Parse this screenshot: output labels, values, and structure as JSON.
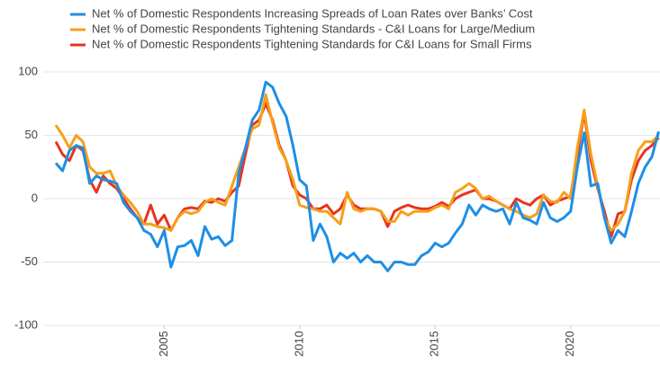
{
  "chart_data": {
    "type": "line",
    "x": [
      2001,
      2001.25,
      2001.5,
      2001.75,
      2002,
      2002.25,
      2002.5,
      2002.75,
      2003,
      2003.25,
      2003.5,
      2003.75,
      2004,
      2004.25,
      2004.5,
      2004.75,
      2005,
      2005.25,
      2005.5,
      2005.75,
      2006,
      2006.25,
      2006.5,
      2006.75,
      2007,
      2007.25,
      2007.5,
      2007.75,
      2008,
      2008.25,
      2008.5,
      2008.75,
      2009,
      2009.25,
      2009.5,
      2009.75,
      2010,
      2010.25,
      2010.5,
      2010.75,
      2011,
      2011.25,
      2011.5,
      2011.75,
      2012,
      2012.25,
      2012.5,
      2012.75,
      2013,
      2013.25,
      2013.5,
      2013.75,
      2014,
      2014.25,
      2014.5,
      2014.75,
      2015,
      2015.25,
      2015.5,
      2015.75,
      2016,
      2016.25,
      2016.5,
      2016.75,
      2017,
      2017.25,
      2017.5,
      2017.75,
      2018,
      2018.25,
      2018.5,
      2018.75,
      2019,
      2019.25,
      2019.5,
      2019.75,
      2020,
      2020.25,
      2020.5,
      2020.75,
      2021,
      2021.25,
      2021.5,
      2021.75,
      2022,
      2022.25,
      2022.5,
      2022.75,
      2023,
      2023.25
    ],
    "series": [
      {
        "name": "Net % of Domestic Respondents Increasing Spreads of Loan Rates over Banks’ Cost",
        "color": "#1e8fe6",
        "values": [
          28,
          22,
          38,
          42,
          40,
          12,
          18,
          15,
          14,
          12,
          -3,
          -10,
          -15,
          -25,
          -28,
          -38,
          -25,
          -54,
          -38,
          -37,
          -33,
          -45,
          -22,
          -32,
          -30,
          -37,
          -33,
          20,
          40,
          62,
          70,
          92,
          88,
          75,
          65,
          42,
          15,
          10,
          -33,
          -20,
          -30,
          -50,
          -43,
          -47,
          -43,
          -50,
          -45,
          -50,
          -50,
          -57,
          -50,
          -50,
          -52,
          -52,
          -45,
          -42,
          -35,
          -38,
          -35,
          -27,
          -20,
          -5,
          -13,
          -5,
          -8,
          -10,
          -8,
          -20,
          -3,
          -15,
          -17,
          -20,
          -3,
          -15,
          -18,
          -15,
          -10,
          25,
          52,
          10,
          12,
          -15,
          -35,
          -25,
          -30,
          -10,
          12,
          25,
          33,
          53
        ]
      },
      {
        "name": "Net % of Domestic Respondents Tightening Standards - C&I Loans for Large/Medium",
        "color": "#f5a01a",
        "values": [
          58,
          50,
          40,
          50,
          45,
          25,
          20,
          20,
          22,
          10,
          3,
          -3,
          -10,
          -20,
          -20,
          -22,
          -23,
          -25,
          -15,
          -10,
          -12,
          -10,
          -3,
          0,
          -3,
          -5,
          10,
          25,
          40,
          55,
          58,
          82,
          60,
          40,
          30,
          15,
          -5,
          -7,
          -8,
          -10,
          -10,
          -15,
          -20,
          5,
          -8,
          -10,
          -8,
          -8,
          -10,
          -18,
          -18,
          -10,
          -13,
          -10,
          -10,
          -10,
          -7,
          -5,
          -8,
          5,
          8,
          12,
          8,
          0,
          2,
          -2,
          -5,
          -8,
          -10,
          -13,
          -15,
          -12,
          3,
          -2,
          -3,
          5,
          0,
          40,
          70,
          35,
          10,
          -15,
          -25,
          -20,
          -10,
          20,
          38,
          45,
          45,
          50
        ]
      },
      {
        "name": "Net % of Domestic Respondents Tightening Standards for C&I Loans for Small Firms",
        "color": "#e8341c",
        "values": [
          45,
          35,
          30,
          42,
          38,
          15,
          5,
          18,
          12,
          8,
          0,
          -8,
          -15,
          -20,
          -5,
          -20,
          -13,
          -25,
          -15,
          -8,
          -7,
          -8,
          -2,
          -3,
          0,
          -2,
          5,
          10,
          35,
          58,
          62,
          75,
          62,
          42,
          30,
          10,
          3,
          0,
          -8,
          -8,
          -5,
          -12,
          -8,
          3,
          -5,
          -8,
          -8,
          -8,
          -10,
          -22,
          -10,
          -7,
          -5,
          -7,
          -8,
          -8,
          -6,
          -3,
          -6,
          0,
          3,
          5,
          7,
          0,
          0,
          -2,
          -5,
          -8,
          0,
          -3,
          -5,
          0,
          3,
          -5,
          -2,
          0,
          2,
          35,
          68,
          30,
          8,
          -10,
          -30,
          -12,
          -10,
          15,
          30,
          38,
          42,
          48
        ]
      }
    ],
    "xlim": [
      2000.9,
      2023.3
    ],
    "xticks": [
      2005,
      2010,
      2015,
      2020
    ],
    "ylim": [
      -100,
      100
    ],
    "yticks": [
      -100,
      -50,
      0,
      50,
      100
    ],
    "grid": true
  }
}
